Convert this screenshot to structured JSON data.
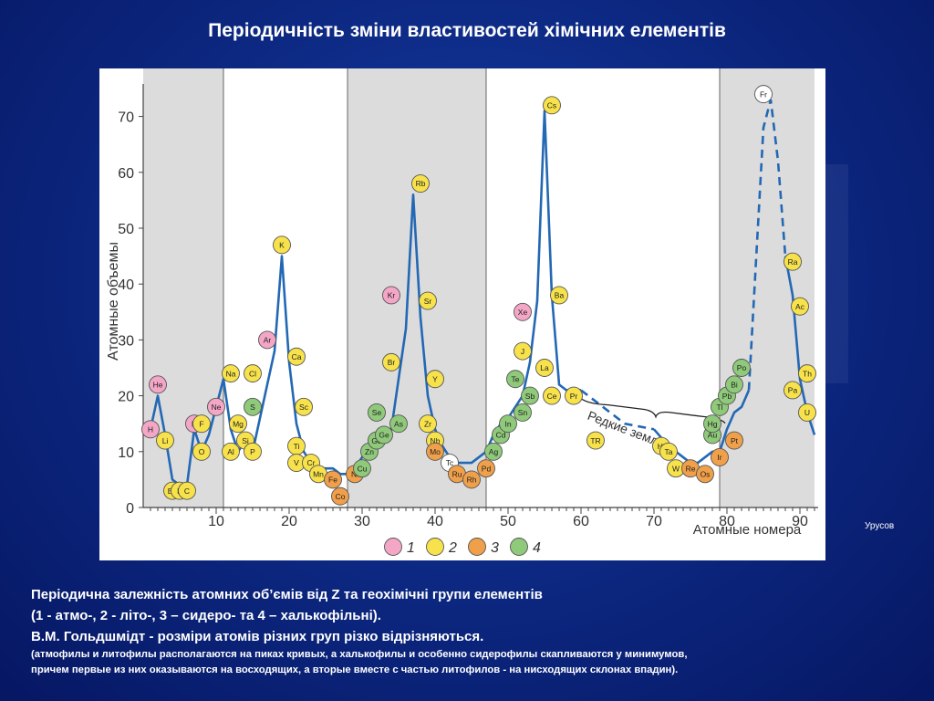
{
  "slide": {
    "title": "Періодичність зміни властивостей хімічних елементів",
    "source": "Урусов",
    "caption": [
      " Періодична залежність атомних об’ємів від Z та геохімічні групи елементів",
      "(1 - атмо-, 2 - літо-, 3 – сидеро- та 4 – халькофільні).",
      "В.М. Гольдшмідт - розміри атомів різних груп різко відрізняються."
    ],
    "caption_small": [
      "(атмофилы и литофилы располагаются на пиках кривых, а халькофилы и особенно сидерофилы скапливаются у минимумов,",
      "причем первые из них оказываются на восходящих, а вторые вместе с частью литофилов - на нисходящих склонах впадин)."
    ]
  },
  "chart_data": {
    "type": "scatter",
    "ylabel": "Атомные объемы",
    "xlabel": "Атомные номера",
    "xlim": [
      0,
      92
    ],
    "ylim": [
      0,
      73
    ],
    "x_ticks": [
      10,
      20,
      30,
      40,
      50,
      60,
      70,
      80,
      90
    ],
    "y_ticks": [
      0,
      10,
      20,
      30,
      40,
      50,
      60,
      70
    ],
    "shaded_ranges": [
      [
        0,
        11
      ],
      [
        28,
        47
      ],
      [
        79,
        92
      ]
    ],
    "curve_annotation": "Редкие земли",
    "colors": {
      "1": "#f4a6c7",
      "2": "#f7e24b",
      "3": "#f0a04a",
      "4": "#8fc97a",
      "unk": "#ffffff",
      "line": "#2368b4"
    },
    "legend": [
      {
        "group": "1",
        "label": "1"
      },
      {
        "group": "2",
        "label": "2"
      },
      {
        "group": "3",
        "label": "3"
      },
      {
        "group": "4",
        "label": "4"
      }
    ],
    "curve_solid_1": [
      [
        1,
        14
      ],
      [
        2,
        20
      ],
      [
        3,
        13
      ],
      [
        4,
        5
      ],
      [
        5,
        4
      ],
      [
        6,
        4
      ],
      [
        7,
        14
      ],
      [
        8,
        10
      ],
      [
        9,
        13
      ],
      [
        11,
        23
      ],
      [
        12,
        14
      ],
      [
        13,
        10
      ],
      [
        14,
        12
      ],
      [
        15,
        10
      ],
      [
        16,
        16
      ],
      [
        18,
        28
      ],
      [
        19,
        45
      ],
      [
        20,
        26
      ],
      [
        21,
        15
      ],
      [
        22,
        10
      ],
      [
        23,
        8
      ],
      [
        24,
        7
      ],
      [
        25,
        7
      ],
      [
        26,
        7
      ],
      [
        27,
        6
      ],
      [
        28,
        6
      ],
      [
        29,
        7
      ],
      [
        30,
        9
      ],
      [
        31,
        11
      ],
      [
        32,
        13
      ],
      [
        33,
        13
      ],
      [
        34,
        14
      ],
      [
        36,
        32
      ],
      [
        37,
        56
      ],
      [
        38,
        34
      ],
      [
        39,
        20
      ],
      [
        40,
        14
      ],
      [
        41,
        11
      ],
      [
        42,
        9
      ],
      [
        43,
        8
      ],
      [
        44,
        8
      ],
      [
        45,
        8
      ],
      [
        46,
        9
      ],
      [
        47,
        10
      ],
      [
        48,
        13
      ],
      [
        49,
        15
      ],
      [
        50,
        16
      ],
      [
        51,
        18
      ],
      [
        52,
        20
      ],
      [
        53,
        26
      ],
      [
        54,
        37
      ],
      [
        55,
        71
      ],
      [
        56,
        38
      ],
      [
        57,
        22
      ],
      [
        58,
        21
      ],
      [
        59,
        21
      ],
      [
        60,
        21
      ]
    ],
    "curve_dashed_1": [
      [
        60,
        21
      ],
      [
        66,
        15
      ],
      [
        70,
        14
      ]
    ],
    "curve_solid_2": [
      [
        70,
        14
      ],
      [
        72,
        11
      ],
      [
        73,
        10
      ],
      [
        74,
        9
      ],
      [
        75,
        8
      ],
      [
        76,
        8
      ],
      [
        77,
        9
      ],
      [
        78,
        10
      ],
      [
        79,
        10
      ],
      [
        80,
        14
      ],
      [
        81,
        17
      ],
      [
        82,
        18
      ],
      [
        83,
        21
      ]
    ],
    "curve_dashed_2": [
      [
        83,
        21
      ],
      [
        85,
        68
      ],
      [
        86,
        73
      ],
      [
        87,
        62
      ],
      [
        88,
        45
      ]
    ],
    "curve_solid_3": [
      [
        88,
        45
      ],
      [
        89,
        38
      ],
      [
        90,
        23
      ],
      [
        91,
        17
      ],
      [
        92,
        13
      ]
    ],
    "elements": [
      {
        "s": "H",
        "x": 1,
        "y": 14,
        "g": "1"
      },
      {
        "s": "He",
        "x": 2,
        "y": 22,
        "g": "1"
      },
      {
        "s": "Li",
        "x": 3,
        "y": 12,
        "g": "2"
      },
      {
        "s": "Be",
        "x": 4,
        "y": 3,
        "g": "2"
      },
      {
        "s": "B",
        "x": 5,
        "y": 3,
        "g": "2"
      },
      {
        "s": "C",
        "x": 6,
        "y": 3,
        "g": "2"
      },
      {
        "s": "N",
        "x": 7,
        "y": 15,
        "g": "1"
      },
      {
        "s": "O",
        "x": 8,
        "y": 10,
        "g": "2"
      },
      {
        "s": "F",
        "x": 8,
        "y": 15,
        "g": "2"
      },
      {
        "s": "Ne",
        "x": 10,
        "y": 18,
        "g": "1"
      },
      {
        "s": "Na",
        "x": 12,
        "y": 24,
        "g": "2"
      },
      {
        "s": "Mg",
        "x": 13,
        "y": 15,
        "g": "2"
      },
      {
        "s": "Al",
        "x": 12,
        "y": 10,
        "g": "2"
      },
      {
        "s": "Si",
        "x": 14,
        "y": 12,
        "g": "2"
      },
      {
        "s": "P",
        "x": 15,
        "y": 10,
        "g": "2"
      },
      {
        "s": "S",
        "x": 15,
        "y": 18,
        "g": "4"
      },
      {
        "s": "Cl",
        "x": 15,
        "y": 24,
        "g": "2"
      },
      {
        "s": "Ar",
        "x": 17,
        "y": 30,
        "g": "1"
      },
      {
        "s": "K",
        "x": 19,
        "y": 47,
        "g": "2"
      },
      {
        "s": "Ca",
        "x": 21,
        "y": 27,
        "g": "2"
      },
      {
        "s": "Sc",
        "x": 22,
        "y": 18,
        "g": "2"
      },
      {
        "s": "Ti",
        "x": 21,
        "y": 11,
        "g": "2"
      },
      {
        "s": "V",
        "x": 21,
        "y": 8,
        "g": "2"
      },
      {
        "s": "Cr",
        "x": 23,
        "y": 8,
        "g": "2"
      },
      {
        "s": "Mn",
        "x": 24,
        "y": 6,
        "g": "2"
      },
      {
        "s": "Fe",
        "x": 26,
        "y": 5,
        "g": "3"
      },
      {
        "s": "Co",
        "x": 27,
        "y": 2,
        "g": "3"
      },
      {
        "s": "Ni",
        "x": 29,
        "y": 6,
        "g": "3"
      },
      {
        "s": "Cu",
        "x": 30,
        "y": 7,
        "g": "4"
      },
      {
        "s": "Zn",
        "x": 31,
        "y": 10,
        "g": "4"
      },
      {
        "s": "Ga",
        "x": 32,
        "y": 12,
        "g": "4"
      },
      {
        "s": "Ge",
        "x": 33,
        "y": 13,
        "g": "4"
      },
      {
        "s": "Se",
        "x": 32,
        "y": 17,
        "g": "4"
      },
      {
        "s": "As",
        "x": 35,
        "y": 15,
        "g": "4"
      },
      {
        "s": "Br",
        "x": 34,
        "y": 26,
        "g": "2"
      },
      {
        "s": "Kr",
        "x": 34,
        "y": 38,
        "g": "1"
      },
      {
        "s": "Rb",
        "x": 38,
        "y": 58,
        "g": "2"
      },
      {
        "s": "Sr",
        "x": 39,
        "y": 37,
        "g": "2"
      },
      {
        "s": "Y",
        "x": 40,
        "y": 23,
        "g": "2"
      },
      {
        "s": "Zr",
        "x": 39,
        "y": 15,
        "g": "2"
      },
      {
        "s": "Nb",
        "x": 40,
        "y": 12,
        "g": "2"
      },
      {
        "s": "Mo",
        "x": 40,
        "y": 10,
        "g": "3"
      },
      {
        "s": "Tc",
        "x": 42,
        "y": 8,
        "g": "unk"
      },
      {
        "s": "Ru",
        "x": 43,
        "y": 6,
        "g": "3"
      },
      {
        "s": "Rh",
        "x": 45,
        "y": 5,
        "g": "3"
      },
      {
        "s": "Pd",
        "x": 47,
        "y": 7,
        "g": "3"
      },
      {
        "s": "Ag",
        "x": 48,
        "y": 10,
        "g": "4"
      },
      {
        "s": "Cd",
        "x": 49,
        "y": 13,
        "g": "4"
      },
      {
        "s": "In",
        "x": 50,
        "y": 15,
        "g": "4"
      },
      {
        "s": "Sn",
        "x": 52,
        "y": 17,
        "g": "4"
      },
      {
        "s": "Sb",
        "x": 53,
        "y": 20,
        "g": "4"
      },
      {
        "s": "Te",
        "x": 51,
        "y": 23,
        "g": "4"
      },
      {
        "s": "J",
        "x": 52,
        "y": 28,
        "g": "2"
      },
      {
        "s": "Xe",
        "x": 52,
        "y": 35,
        "g": "1"
      },
      {
        "s": "Cs",
        "x": 56,
        "y": 72,
        "g": "2"
      },
      {
        "s": "Ba",
        "x": 57,
        "y": 38,
        "g": "2"
      },
      {
        "s": "La",
        "x": 55,
        "y": 25,
        "g": "2"
      },
      {
        "s": "Ce",
        "x": 56,
        "y": 20,
        "g": "2"
      },
      {
        "s": "Pr",
        "x": 59,
        "y": 20,
        "g": "2"
      },
      {
        "s": "TR",
        "x": 62,
        "y": 12,
        "g": "2"
      },
      {
        "s": "Hf",
        "x": 71,
        "y": 11,
        "g": "2"
      },
      {
        "s": "Ta",
        "x": 72,
        "y": 10,
        "g": "2"
      },
      {
        "s": "W",
        "x": 73,
        "y": 7,
        "g": "2"
      },
      {
        "s": "Re",
        "x": 75,
        "y": 7,
        "g": "3"
      },
      {
        "s": "Os",
        "x": 77,
        "y": 6,
        "g": "3"
      },
      {
        "s": "Ir",
        "x": 79,
        "y": 9,
        "g": "3"
      },
      {
        "s": "Pt",
        "x": 81,
        "y": 12,
        "g": "3"
      },
      {
        "s": "Au",
        "x": 78,
        "y": 13,
        "g": "4"
      },
      {
        "s": "Hg",
        "x": 78,
        "y": 15,
        "g": "4"
      },
      {
        "s": "Tl",
        "x": 79,
        "y": 18,
        "g": "4"
      },
      {
        "s": "Pb",
        "x": 80,
        "y": 20,
        "g": "4"
      },
      {
        "s": "Bi",
        "x": 81,
        "y": 22,
        "g": "4"
      },
      {
        "s": "Po",
        "x": 82,
        "y": 25,
        "g": "4"
      },
      {
        "s": "Fr",
        "x": 85,
        "y": 74,
        "g": "unk"
      },
      {
        "s": "Ra",
        "x": 89,
        "y": 44,
        "g": "2"
      },
      {
        "s": "Ac",
        "x": 90,
        "y": 36,
        "g": "2"
      },
      {
        "s": "Th",
        "x": 91,
        "y": 24,
        "g": "2"
      },
      {
        "s": "Pa",
        "x": 89,
        "y": 21,
        "g": "2"
      },
      {
        "s": "U",
        "x": 91,
        "y": 17,
        "g": "2"
      }
    ]
  }
}
